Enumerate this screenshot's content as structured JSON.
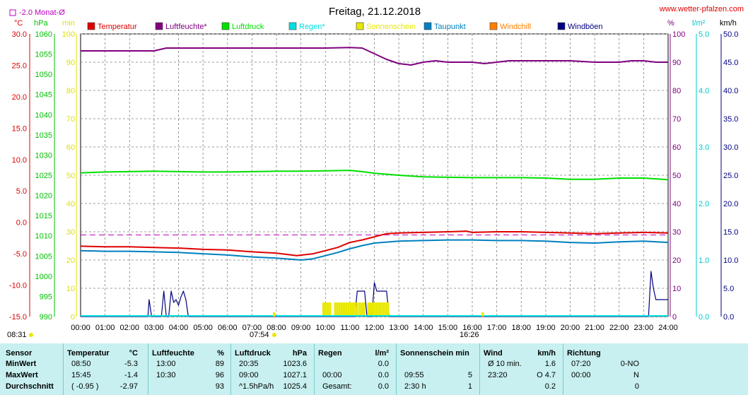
{
  "header": {
    "title": "Freitag, 21.12.2018",
    "site": "www.wetter-pfalzen.com",
    "monat_label": "-2.0 Monat-Ø",
    "sunrise_time": "08:31",
    "sunset_time": "16:26",
    "sun_time_left": "07:54"
  },
  "units": {
    "temp": "°C",
    "pressure": "hPa",
    "min": "min",
    "percent": "%",
    "rain": "l/m²",
    "wind": "km/h"
  },
  "legend": [
    {
      "label": "Temperatur",
      "color": "#e00000"
    },
    {
      "label": "Luftfeuchte*",
      "color": "#800080"
    },
    {
      "label": "Luftdruck",
      "color": "#00e000"
    },
    {
      "label": "Regen*",
      "color": "#00e0e0"
    },
    {
      "label": "Sonnenschein",
      "color": "#e8e800"
    },
    {
      "label": "Taupunkt",
      "color": "#0080c0"
    },
    {
      "label": "Windchill",
      "color": "#ff8000"
    },
    {
      "label": "Windböen",
      "color": "#000080"
    }
  ],
  "chart_data": {
    "type": "line",
    "x_ticks": [
      "00:00",
      "01:00",
      "02:00",
      "03:00",
      "04:00",
      "05:00",
      "06:00",
      "07:00",
      "08:00",
      "09:00",
      "10:00",
      "11:00",
      "12:00",
      "13:00",
      "14:00",
      "15:00",
      "16:00",
      "17:00",
      "18:00",
      "19:00",
      "20:00",
      "21:00",
      "22:00",
      "23:00",
      "24:00"
    ],
    "axes": {
      "temp_ticks": [
        "30.0",
        "25.0",
        "20.0",
        "15.0",
        "10.0",
        "5.0",
        "0.0",
        "-5.0",
        "-10.0",
        "-15.0"
      ],
      "pressure_ticks": [
        "1060",
        "1055",
        "1050",
        "1045",
        "1040",
        "1035",
        "1030",
        "1025",
        "1020",
        "1015",
        "1010",
        "1005",
        "1000",
        "995",
        "990"
      ],
      "min_ticks": [
        "100",
        "90",
        "80",
        "70",
        "60",
        "50",
        "40",
        "30",
        "20",
        "10",
        "0"
      ],
      "percent_ticks": [
        "100",
        "90",
        "80",
        "70",
        "60",
        "50",
        "40",
        "30",
        "20",
        "10",
        "0"
      ],
      "rain_ticks": [
        "5.0",
        "4.0",
        "3.0",
        "2.0",
        "1.0",
        "0.0"
      ],
      "wind_ticks": [
        "50.0",
        "45.0",
        "40.0",
        "35.0",
        "30.0",
        "25.0",
        "20.0",
        "15.0",
        "10.0",
        "5.0",
        "0.0"
      ]
    },
    "ranges": {
      "temp": [
        -15,
        30
      ],
      "pressure": [
        990,
        1060
      ],
      "percent": [
        0,
        100
      ],
      "rain": [
        0,
        5
      ],
      "wind": [
        0,
        50
      ],
      "sun_min": [
        0,
        100
      ]
    },
    "monthly_avg_temp": -2.0,
    "series": [
      {
        "name": "Temperatur",
        "unit": "°C",
        "color": "#e00000",
        "points": [
          [
            0,
            -3.8
          ],
          [
            1,
            -3.9
          ],
          [
            2,
            -3.9
          ],
          [
            3,
            -4.0
          ],
          [
            4,
            -4.1
          ],
          [
            5,
            -4.3
          ],
          [
            6,
            -4.4
          ],
          [
            7,
            -4.7
          ],
          [
            8,
            -4.9
          ],
          [
            8.83,
            -5.3
          ],
          [
            9.5,
            -5.0
          ],
          [
            10,
            -4.5
          ],
          [
            10.5,
            -4.0
          ],
          [
            11,
            -3.2
          ],
          [
            11.5,
            -2.8
          ],
          [
            12,
            -2.3
          ],
          [
            12.5,
            -1.8
          ],
          [
            13,
            -1.7
          ],
          [
            14,
            -1.6
          ],
          [
            15,
            -1.5
          ],
          [
            15.75,
            -1.4
          ],
          [
            16,
            -1.6
          ],
          [
            17,
            -1.5
          ],
          [
            18,
            -1.5
          ],
          [
            19,
            -1.6
          ],
          [
            20,
            -1.7
          ],
          [
            21,
            -1.8
          ],
          [
            22,
            -1.7
          ],
          [
            23,
            -1.6
          ],
          [
            24,
            -1.7
          ]
        ]
      },
      {
        "name": "Taupunkt",
        "unit": "°C",
        "color": "#0080c0",
        "points": [
          [
            0,
            -4.5
          ],
          [
            1,
            -4.6
          ],
          [
            2,
            -4.6
          ],
          [
            3,
            -4.7
          ],
          [
            4,
            -4.8
          ],
          [
            5,
            -5.0
          ],
          [
            6,
            -5.2
          ],
          [
            7,
            -5.5
          ],
          [
            8,
            -5.7
          ],
          [
            9,
            -6.0
          ],
          [
            9.5,
            -5.8
          ],
          [
            10,
            -5.3
          ],
          [
            10.5,
            -4.8
          ],
          [
            11,
            -4.2
          ],
          [
            11.5,
            -3.7
          ],
          [
            12,
            -3.3
          ],
          [
            13,
            -3.0
          ],
          [
            14,
            -2.9
          ],
          [
            15,
            -2.8
          ],
          [
            16,
            -2.8
          ],
          [
            17,
            -2.9
          ],
          [
            18,
            -2.9
          ],
          [
            19,
            -3.0
          ],
          [
            20,
            -3.2
          ],
          [
            21,
            -3.3
          ],
          [
            22,
            -3.1
          ],
          [
            23,
            -3.0
          ],
          [
            24,
            -3.2
          ]
        ]
      },
      {
        "name": "Luftfeuchte*",
        "unit": "%",
        "color": "#800080",
        "points": [
          [
            0,
            94
          ],
          [
            3,
            94
          ],
          [
            3.5,
            95
          ],
          [
            4,
            95
          ],
          [
            6,
            95
          ],
          [
            7,
            95
          ],
          [
            8,
            95
          ],
          [
            9,
            95
          ],
          [
            10,
            95
          ],
          [
            11,
            95.2
          ],
          [
            11.5,
            95
          ],
          [
            12,
            93
          ],
          [
            12.5,
            91
          ],
          [
            13,
            89.5
          ],
          [
            13.5,
            89
          ],
          [
            14,
            90
          ],
          [
            14.5,
            90.5
          ],
          [
            15,
            90
          ],
          [
            16,
            90
          ],
          [
            16.5,
            89.5
          ],
          [
            17,
            90
          ],
          [
            17.5,
            90.5
          ],
          [
            18,
            90.5
          ],
          [
            19,
            90.5
          ],
          [
            20,
            90.5
          ],
          [
            21,
            90
          ],
          [
            22,
            90
          ],
          [
            22.5,
            90.5
          ],
          [
            23,
            90.5
          ],
          [
            23.5,
            90
          ],
          [
            24,
            90
          ]
        ]
      },
      {
        "name": "Luftdruck",
        "unit": "hPa",
        "color": "#00e000",
        "points": [
          [
            0,
            1025.6
          ],
          [
            1,
            1025.8
          ],
          [
            2,
            1025.9
          ],
          [
            3,
            1026.0
          ],
          [
            4,
            1025.9
          ],
          [
            5,
            1025.8
          ],
          [
            6,
            1025.8
          ],
          [
            7,
            1025.9
          ],
          [
            8,
            1026.0
          ],
          [
            9,
            1026.0
          ],
          [
            10,
            1026.1
          ],
          [
            11,
            1026.2
          ],
          [
            11.5,
            1025.9
          ],
          [
            12,
            1025.5
          ],
          [
            13,
            1025.0
          ],
          [
            14,
            1024.6
          ],
          [
            15,
            1024.5
          ],
          [
            16,
            1024.4
          ],
          [
            17,
            1024.4
          ],
          [
            18,
            1024.4
          ],
          [
            19,
            1024.3
          ],
          [
            20,
            1024.0
          ],
          [
            21,
            1024.0
          ],
          [
            22,
            1024.3
          ],
          [
            23,
            1024.3
          ],
          [
            24,
            1023.9
          ]
        ]
      },
      {
        "name": "Windböen",
        "unit": "km/h",
        "color": "#000080",
        "points": [
          [
            0,
            0
          ],
          [
            2.75,
            0
          ],
          [
            2.8,
            3
          ],
          [
            2.9,
            0
          ],
          [
            3.3,
            0
          ],
          [
            3.4,
            4.5
          ],
          [
            3.5,
            0
          ],
          [
            3.6,
            0
          ],
          [
            3.7,
            4.5
          ],
          [
            3.8,
            2.5
          ],
          [
            3.9,
            3
          ],
          [
            4.0,
            2
          ],
          [
            4.1,
            3.5
          ],
          [
            4.2,
            4.5
          ],
          [
            4.3,
            3
          ],
          [
            4.4,
            0
          ],
          [
            11.2,
            0
          ],
          [
            11.3,
            4.5
          ],
          [
            11.6,
            4.5
          ],
          [
            11.7,
            0
          ],
          [
            11.9,
            0
          ],
          [
            12.0,
            6
          ],
          [
            12.1,
            4.5
          ],
          [
            12.2,
            4.5
          ],
          [
            12.5,
            4.5
          ],
          [
            12.6,
            0
          ],
          [
            23.2,
            0
          ],
          [
            23.3,
            8
          ],
          [
            23.4,
            5
          ],
          [
            23.5,
            3
          ],
          [
            24,
            3
          ]
        ]
      },
      {
        "name": "Sonnenschein",
        "unit": "min",
        "color": "#e8e800",
        "intervals": [
          [
            9.92,
            10.25
          ],
          [
            10.4,
            11.3
          ],
          [
            11.4,
            11.6
          ],
          [
            11.75,
            12.6
          ]
        ],
        "value": 5
      }
    ]
  },
  "stats": {
    "row_labels": [
      "Sensor",
      "MinWert",
      "MaxWert",
      "Durchschnitt"
    ],
    "columns": [
      {
        "title": "Temperatur",
        "unit": "°C",
        "min_time": "08:50",
        "min_val": "-5.3",
        "max_time": "15:45",
        "max_val": "-1.4",
        "avg_a": "( -0.95 )",
        "avg_b": "-2.97"
      },
      {
        "title": "Luftfeuchte",
        "unit": "%",
        "min_time": "13:00",
        "min_val": "89",
        "max_time": "10:30",
        "max_val": "96",
        "avg_a": "",
        "avg_b": "93"
      },
      {
        "title": "Luftdruck",
        "unit": "hPa",
        "min_time": "20:35",
        "min_val": "1023.6",
        "max_time": "09:00",
        "max_val": "1027.1",
        "avg_a": "^1.5hPa/h",
        "avg_b": "1025.4"
      },
      {
        "title": "Regen",
        "unit": "l/m²",
        "min_time": "",
        "min_val": "0.0",
        "max_time": "00:00",
        "max_val": "0.0",
        "avg_a": "Gesamt:",
        "avg_b": "0.0"
      },
      {
        "title": "Sonnenschein min",
        "unit": "",
        "min_time": "",
        "min_val": "",
        "max_time": "09:55",
        "max_val": "5",
        "avg_a": "2:30 h",
        "avg_b": "1"
      },
      {
        "title": "Wind",
        "unit": "km/h",
        "min_time": "Ø 10 min.",
        "min_val": "1.6",
        "max_time": "23:20",
        "max_val": "O 4.7",
        "avg_a": "",
        "avg_b": "0.2"
      },
      {
        "title": "Richtung",
        "unit": "",
        "min_time": "07:20",
        "min_val": "0-NO",
        "max_time": "00:00",
        "max_val": "N",
        "avg_a": "",
        "avg_b": "0"
      }
    ]
  }
}
